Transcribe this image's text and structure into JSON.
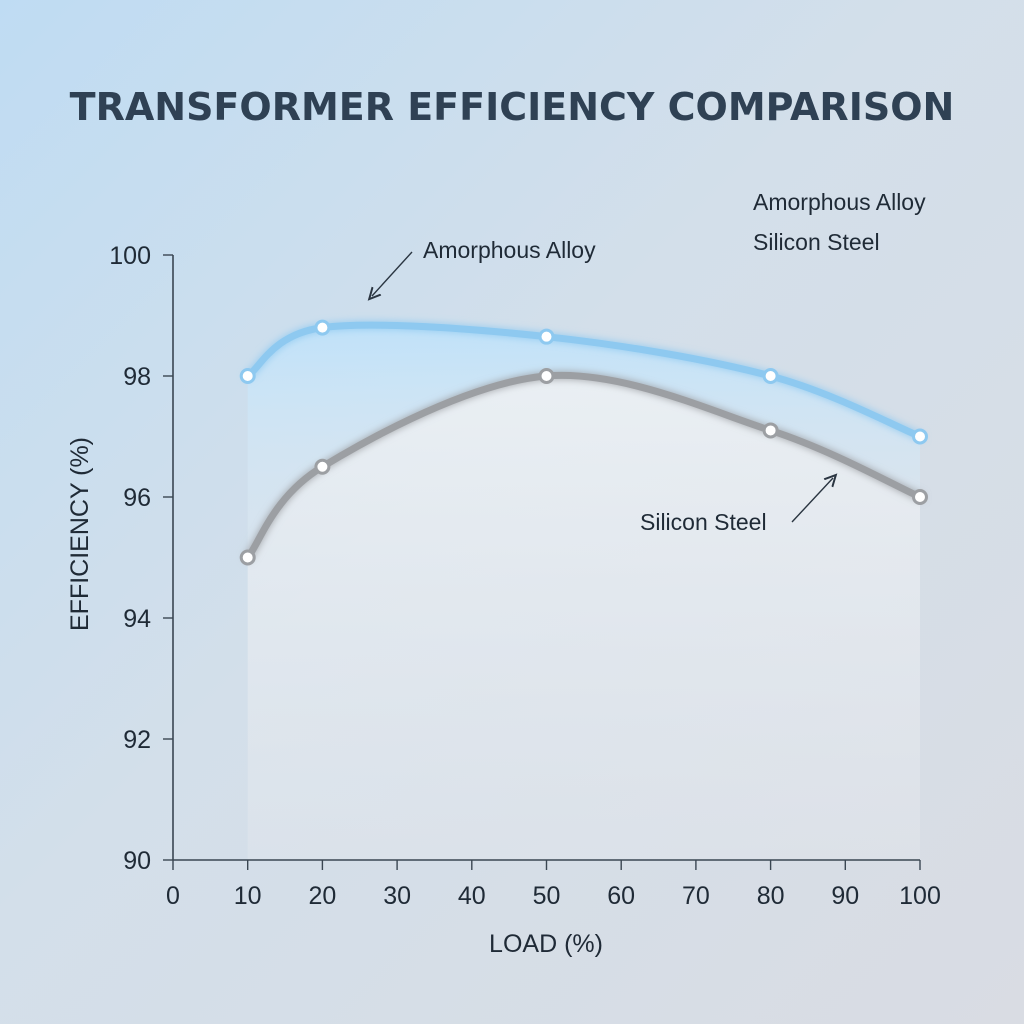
{
  "chart_data": {
    "type": "line",
    "title": "TRANSFORMER EFFICIENCY COMPARISON",
    "xlabel": "LOAD (%)",
    "ylabel": "EFFICIENCY (%)",
    "xlim": [
      0,
      100
    ],
    "ylim": [
      90,
      100
    ],
    "x_ticks": [
      0,
      10,
      20,
      30,
      40,
      50,
      60,
      70,
      80,
      90,
      100
    ],
    "y_ticks": [
      90,
      92,
      94,
      96,
      98,
      100
    ],
    "legend_position": "top-right",
    "grid": false,
    "series": [
      {
        "name": "Amorphous Alloy",
        "color": "#8ec9f0",
        "x": [
          10,
          20,
          50,
          80,
          100
        ],
        "y": [
          98.0,
          98.8,
          98.65,
          98.0,
          97.0
        ]
      },
      {
        "name": "Silicon Steel",
        "color": "#9c9fa3",
        "x": [
          10,
          20,
          50,
          80,
          100
        ],
        "y": [
          95.0,
          96.5,
          98.0,
          97.1,
          96.0
        ]
      }
    ],
    "annotations": [
      {
        "text": "Amorphous Alloy",
        "target_series": 0
      },
      {
        "text": "Silicon Steel",
        "target_series": 1
      }
    ]
  }
}
